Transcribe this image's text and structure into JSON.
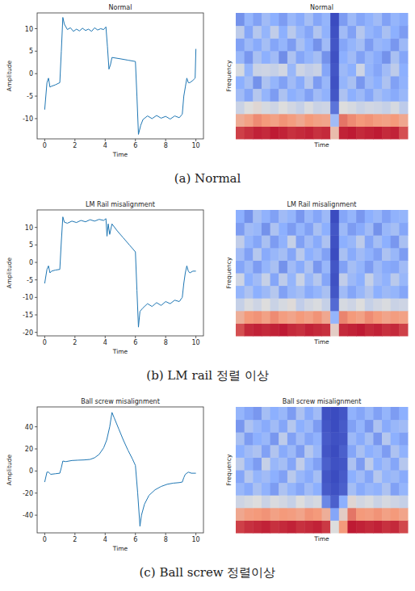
{
  "chart_data": [
    {
      "type": "line",
      "title": "Normal",
      "x_label": "Time",
      "y_label": "Amplitude",
      "color": "#1f77b4",
      "x": [
        0,
        0.15,
        0.25,
        0.35,
        0.45,
        0.7,
        1.0,
        1.1,
        1.2,
        1.3,
        1.5,
        1.7,
        1.9,
        2.1,
        2.3,
        2.5,
        2.7,
        2.9,
        3.1,
        3.3,
        3.5,
        3.7,
        3.9,
        4.05,
        4.15,
        4.25,
        4.35,
        4.45,
        5.0,
        5.5,
        6.0,
        6.1,
        6.2,
        6.35,
        6.5,
        6.8,
        7.1,
        7.4,
        7.7,
        8.0,
        8.3,
        8.6,
        8.9,
        9.1,
        9.2,
        9.3,
        9.4,
        9.5,
        9.6,
        9.8,
        9.95,
        10
      ],
      "values": [
        -8,
        -2,
        -1,
        -3,
        -2.8,
        -2.5,
        -2,
        5,
        12.5,
        11,
        9.8,
        10.2,
        9.4,
        9.9,
        9.5,
        10.1,
        9.6,
        9.9,
        9.4,
        10.2,
        9.7,
        10,
        9.8,
        10.4,
        6,
        1,
        2,
        3.6,
        3.3,
        3,
        2.7,
        -5,
        -13.5,
        -11.5,
        -10.2,
        -9.4,
        -10,
        -9.3,
        -9.9,
        -9.5,
        -10.1,
        -9.4,
        -9.8,
        -9,
        -5,
        -3,
        -1,
        -2,
        -2,
        -1.5,
        -1,
        5.5
      ],
      "xlim": [
        -0.5,
        10.5
      ],
      "ylim": [
        -14.5,
        13.5
      ],
      "xticks": [
        0,
        2,
        4,
        6,
        8,
        10
      ],
      "yticks": [
        -10,
        -5,
        0,
        5,
        10
      ]
    },
    {
      "type": "heatmap",
      "title": "Normal",
      "x_label": "Time",
      "y_label": "Frequency",
      "tick_labels": false,
      "color_range": [
        -80,
        0
      ],
      "cells": [
        [
          -8,
          -6,
          -4,
          -5,
          -3,
          -4,
          -6,
          -5,
          -4,
          -6,
          -5,
          -30,
          -4,
          -3,
          -5,
          -4,
          -3,
          -5,
          -4,
          -10
        ],
        [
          -25,
          -22,
          -18,
          -20,
          -22,
          -19,
          -21,
          -24,
          -20,
          -22,
          -23,
          -55,
          -15,
          -18,
          -20,
          -19,
          -21,
          -22,
          -20,
          -24
        ],
        [
          -45,
          -40,
          -38,
          -42,
          -44,
          -40,
          -43,
          -46,
          -41,
          -45,
          -44,
          -72,
          -40,
          -42,
          -45,
          -43,
          -44,
          -46,
          -42,
          -48
        ],
        [
          -55,
          -62,
          -50,
          -58,
          -64,
          -52,
          -60,
          -57,
          -63,
          -55,
          -59,
          -78,
          -52,
          -60,
          -56,
          -62,
          -54,
          -58,
          -61,
          -57
        ],
        [
          -60,
          -54,
          -66,
          -52,
          -58,
          -63,
          -55,
          -61,
          -50,
          -64,
          -57,
          -79,
          -58,
          -53,
          -65,
          -56,
          -60,
          -52,
          -63,
          -59
        ],
        [
          -42,
          -58,
          -45,
          -44,
          -46,
          -43,
          -57,
          -44,
          -47,
          -45,
          -62,
          -78,
          -56,
          -60,
          -44,
          -58,
          -62,
          -55,
          -48,
          -60
        ],
        [
          -57,
          -65,
          -53,
          -60,
          -55,
          -67,
          -52,
          -62,
          -58,
          -54,
          -66,
          -79,
          -60,
          -55,
          -63,
          -57,
          -61,
          -66,
          -53,
          -62
        ],
        [
          -63,
          -56,
          -61,
          -54,
          -62,
          -58,
          -64,
          -53,
          -60,
          -66,
          -55,
          -78,
          -62,
          -58,
          -54,
          -64,
          -57,
          -59,
          -65,
          -56
        ],
        [
          -48,
          -62,
          -50,
          -58,
          -47,
          -60,
          -49,
          -57,
          -62,
          -51,
          -59,
          -79,
          -55,
          -63,
          -50,
          -58,
          -61,
          -53,
          -60,
          -64
        ],
        [
          -66,
          -58,
          -63,
          -55,
          -60,
          -64,
          -57,
          -61,
          -54,
          -62,
          -58,
          -80,
          -64,
          -56,
          -62,
          -59,
          -55,
          -63,
          -58,
          -61
        ]
      ]
    },
    {
      "type": "line",
      "title": "LM Rail misalignment",
      "x_label": "Time",
      "y_label": "Amplitude",
      "color": "#1f77b4",
      "x": [
        0,
        0.15,
        0.25,
        0.35,
        0.45,
        0.7,
        1.0,
        1.1,
        1.2,
        1.3,
        1.5,
        1.8,
        2.1,
        2.4,
        2.7,
        3.0,
        3.3,
        3.6,
        3.9,
        4.05,
        4.12,
        4.2,
        4.3,
        4.45,
        4.8,
        5.2,
        5.6,
        6.0,
        6.1,
        6.2,
        6.3,
        6.5,
        6.8,
        7.1,
        7.4,
        7.7,
        8.0,
        8.3,
        8.6,
        8.9,
        9.1,
        9.2,
        9.3,
        9.4,
        9.5,
        9.6,
        9.8,
        10
      ],
      "values": [
        -6,
        -2,
        -1,
        -3,
        -2.5,
        -2.2,
        -2,
        6,
        13,
        11.5,
        11.2,
        11.8,
        11.4,
        12,
        11.6,
        12.2,
        11.8,
        12.3,
        12,
        12.5,
        7.5,
        11,
        8,
        11,
        9,
        7,
        5,
        3,
        -8,
        -18.5,
        -14,
        -13,
        -11.8,
        -12.6,
        -11.5,
        -12.3,
        -11.2,
        -11.8,
        -10.8,
        -11.2,
        -10,
        -6,
        -3,
        -1,
        -2.5,
        -3,
        -2.5,
        -2.5
      ],
      "xlim": [
        -0.5,
        10.5
      ],
      "ylim": [
        -21,
        15
      ],
      "xticks": [
        0,
        2,
        4,
        6,
        8,
        10
      ],
      "yticks": [
        -20,
        -15,
        -10,
        -5,
        0,
        5,
        10
      ]
    },
    {
      "type": "heatmap",
      "title": "LM Rail misalignment",
      "x_label": "Time",
      "y_label": "Frequency",
      "tick_labels": false,
      "color_range": [
        -80,
        0
      ],
      "cells": [
        [
          -10,
          -5,
          -4,
          -5,
          -4,
          -3,
          -5,
          -6,
          -4,
          -5,
          -6,
          -35,
          -5,
          -4,
          -3,
          -5,
          -4,
          -6,
          -5,
          -8
        ],
        [
          -26,
          -20,
          -19,
          -22,
          -18,
          -21,
          -23,
          -20,
          -22,
          -19,
          -24,
          -58,
          -17,
          -20,
          -22,
          -18,
          -20,
          -23,
          -21,
          -22
        ],
        [
          -46,
          -41,
          -44,
          -40,
          -45,
          -42,
          -39,
          -47,
          -43,
          -41,
          -46,
          -74,
          -42,
          -44,
          -40,
          -46,
          -43,
          -41,
          -45,
          -44
        ],
        [
          -58,
          -52,
          -60,
          -56,
          -50,
          -63,
          -57,
          -54,
          -61,
          -58,
          -53,
          -78,
          -55,
          -62,
          -57,
          -51,
          -60,
          -56,
          -58,
          -62
        ],
        [
          -44,
          -60,
          -55,
          -46,
          -62,
          -48,
          -58,
          -45,
          -57,
          -50,
          -62,
          -79,
          -47,
          -56,
          -60,
          -46,
          -55,
          -59,
          -49,
          -57
        ],
        [
          -62,
          -56,
          -64,
          -58,
          -53,
          -66,
          -55,
          -61,
          -52,
          -65,
          -57,
          -78,
          -63,
          -54,
          -58,
          -64,
          -56,
          -61,
          -62,
          -55
        ],
        [
          -55,
          -63,
          -50,
          -61,
          -57,
          -54,
          -62,
          -49,
          -60,
          -56,
          -63,
          -80,
          -53,
          -61,
          -55,
          -59,
          -63,
          -52,
          -57,
          -64
        ],
        [
          -47,
          -58,
          -62,
          -53,
          -64,
          -59,
          -46,
          -63,
          -55,
          -61,
          -52,
          -79,
          -60,
          -57,
          -48,
          -62,
          -54,
          -60,
          -65,
          -53
        ],
        [
          -64,
          -55,
          -57,
          -66,
          -52,
          -60,
          -64,
          -58,
          -63,
          -53,
          -60,
          -78,
          -56,
          -64,
          -61,
          -55,
          -66,
          -57,
          -54,
          -62
        ],
        [
          -60,
          -66,
          -54,
          -59,
          -63,
          -55,
          -58,
          -65,
          -57,
          -62,
          -56,
          -80,
          -62,
          -58,
          -65,
          -60,
          -57,
          -63,
          -59,
          -58
        ]
      ]
    },
    {
      "type": "line",
      "title": "Ball screw misalignment",
      "x_label": "Time",
      "y_label": "Amplitude",
      "color": "#1f77b4",
      "x": [
        0,
        0.15,
        0.25,
        0.4,
        0.7,
        1.0,
        1.1,
        1.2,
        1.4,
        1.8,
        2.2,
        2.6,
        3.0,
        3.3,
        3.6,
        3.9,
        4.1,
        4.3,
        4.45,
        4.6,
        4.9,
        5.2,
        5.5,
        5.8,
        6.0,
        6.15,
        6.3,
        6.4,
        6.6,
        6.9,
        7.3,
        7.7,
        8.1,
        8.5,
        8.9,
        9.1,
        9.2,
        9.3,
        9.5,
        9.7,
        10
      ],
      "values": [
        -10,
        -1,
        -1,
        -3,
        -2.5,
        -2,
        3,
        9,
        8.5,
        9.5,
        9.8,
        10,
        10.5,
        12,
        15,
        21,
        28,
        40,
        53,
        48,
        38,
        28,
        19,
        11,
        5,
        -20,
        -50,
        -40,
        -30,
        -22,
        -17,
        -14,
        -12,
        -11,
        -10.5,
        -10,
        -6,
        -3,
        -1,
        -2,
        -2
      ],
      "xlim": [
        -0.5,
        10.5
      ],
      "ylim": [
        -56,
        58
      ],
      "xticks": [
        0,
        2,
        4,
        6,
        8,
        10
      ],
      "yticks": [
        -40,
        -20,
        0,
        20,
        40
      ]
    },
    {
      "type": "heatmap",
      "title": "Ball screw misalignment",
      "x_label": "Time",
      "y_label": "Frequency",
      "tick_labels": false,
      "color_range": [
        -80,
        0
      ],
      "cells": [
        [
          -8,
          -6,
          -5,
          -4,
          -6,
          -5,
          -4,
          -6,
          -5,
          -4,
          -7,
          -40,
          -20,
          -3,
          -4,
          -5,
          -4,
          -6,
          -5,
          -9
        ],
        [
          -24,
          -21,
          -20,
          -19,
          -22,
          -20,
          -21,
          -23,
          -19,
          -20,
          -26,
          -62,
          -35,
          -15,
          -20,
          -21,
          -19,
          -22,
          -20,
          -23
        ],
        [
          -44,
          -42,
          -40,
          -45,
          -41,
          -43,
          -46,
          -40,
          -44,
          -42,
          -68,
          -76,
          -60,
          -38,
          -43,
          -41,
          -45,
          -42,
          -44,
          -46
        ],
        [
          -57,
          -61,
          -53,
          -59,
          -64,
          -52,
          -58,
          -62,
          -55,
          -60,
          -77,
          -79,
          -76,
          -54,
          -61,
          -57,
          -59,
          -52,
          -63,
          -58
        ],
        [
          -62,
          -50,
          -58,
          -55,
          -60,
          -63,
          -49,
          -57,
          -61,
          -54,
          -78,
          -80,
          -77,
          -60,
          -55,
          -62,
          -50,
          -58,
          -56,
          -61
        ],
        [
          -48,
          -59,
          -64,
          -46,
          -57,
          -54,
          -62,
          -47,
          -58,
          -63,
          -76,
          -79,
          -78,
          -52,
          -64,
          -48,
          -60,
          -55,
          -62,
          -50
        ],
        [
          -60,
          -55,
          -52,
          -63,
          -51,
          -61,
          -56,
          -64,
          -50,
          -57,
          -78,
          -80,
          -76,
          -62,
          -53,
          -60,
          -57,
          -64,
          -52,
          -59
        ],
        [
          -53,
          -64,
          -60,
          -57,
          -65,
          -48,
          -63,
          -55,
          -62,
          -59,
          -77,
          -79,
          -78,
          -56,
          -61,
          -54,
          -65,
          -50,
          -60,
          -63
        ],
        [
          -65,
          -52,
          -57,
          -61,
          -55,
          -62,
          -50,
          -60,
          -56,
          -64,
          -78,
          -80,
          -77,
          -63,
          -58,
          -65,
          -52,
          -61,
          -57,
          -55
        ],
        [
          -58,
          -62,
          -65,
          -54,
          -60,
          -57,
          -64,
          -52,
          -61,
          -55,
          -79,
          -80,
          -78,
          -59,
          -62,
          -57,
          -63,
          -58,
          -64,
          -60
        ]
      ]
    }
  ],
  "captions": [
    "(a) Normal",
    "(b) LM rail 정렬 이상",
    "(c) Ball screw 정렬이상"
  ]
}
